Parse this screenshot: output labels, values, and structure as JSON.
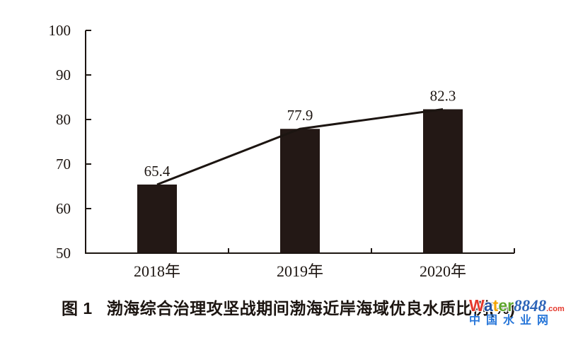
{
  "chart_data": {
    "type": "bar",
    "overlay": "line",
    "title": "图1 渤海综合治理攻坚战期间渤海近岸海域优良水质比例(%)",
    "categories": [
      "2018年",
      "2019年",
      "2020年"
    ],
    "values": [
      65.4,
      77.9,
      82.3
    ],
    "data_labels": [
      "65.4",
      "77.9",
      "82.3"
    ],
    "xlabel": "",
    "ylabel": "",
    "ylim": [
      50,
      100
    ],
    "yticks": [
      50,
      60,
      70,
      80,
      90,
      100
    ],
    "grid": false,
    "legend": "none",
    "bar_color": "#231815",
    "line_color": "#1c1511",
    "axis_color": "#1c1511",
    "text_color": "#1c1511"
  },
  "caption": {
    "figure_label": "图 1",
    "title": "渤海综合治理攻坚战期间渤海近岸海域优良水质比例(%)"
  },
  "watermark": {
    "word_letters": [
      {
        "text": "W",
        "color": "#e5382c"
      },
      {
        "text": "a",
        "color": "#2353a4"
      },
      {
        "text": "t",
        "color": "#f2a400"
      },
      {
        "text": "e",
        "color": "#5fa62f"
      },
      {
        "text": "r",
        "color": "#5fa62f"
      }
    ],
    "number": {
      "text": "8848",
      "color": "#2d64b8"
    },
    "domain": {
      "text": ".com",
      "color": "#e5382c"
    },
    "site_name": {
      "text": "中国水业网",
      "color": "#2776d9"
    }
  }
}
